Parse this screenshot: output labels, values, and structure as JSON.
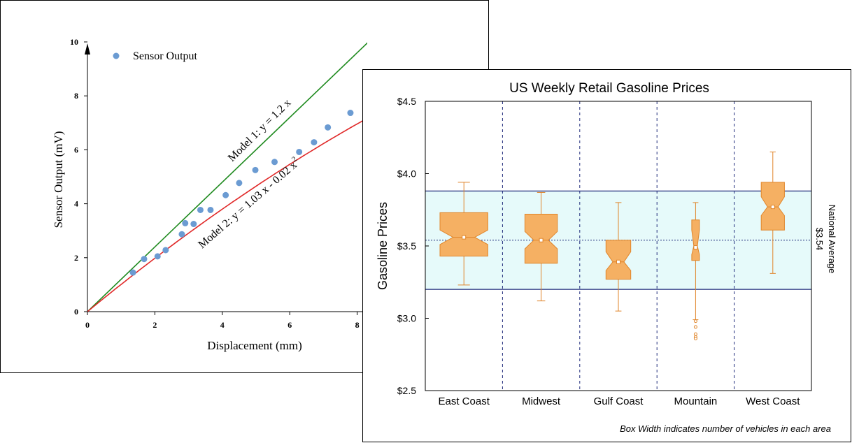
{
  "chart_data": [
    {
      "type": "scatter",
      "xlabel": "Displacement (mm)",
      "ylabel": "Sensor Output (mV)",
      "xlim": [
        0,
        8.3
      ],
      "ylim": [
        0,
        10
      ],
      "xticks": [
        "0",
        "2",
        "4",
        "6",
        "8"
      ],
      "yticks": [
        "0",
        "2",
        "4",
        "6",
        "8",
        "10"
      ],
      "legend": {
        "label": "Sensor Output",
        "position": "top-left"
      },
      "series": [
        {
          "name": "Sensor Output",
          "color": "#6b9bd2",
          "x": [
            1.35,
            1.68,
            2.08,
            2.32,
            2.8,
            2.9,
            3.15,
            3.35,
            3.65,
            4.1,
            4.5,
            4.98,
            5.55,
            6.28,
            6.72,
            7.13,
            7.8
          ],
          "y": [
            1.45,
            1.95,
            2.05,
            2.28,
            2.87,
            3.28,
            3.25,
            3.77,
            3.77,
            4.32,
            4.77,
            5.25,
            5.55,
            5.92,
            6.28,
            6.83,
            7.37
          ]
        }
      ],
      "models": [
        {
          "label": "Model 1: y = 1.2 x",
          "color": "#1e8a1e",
          "a": 1.2,
          "b": 0
        },
        {
          "label_main": "Model 2: y = 1.03 x - 0.02 x",
          "label_sup": "2",
          "color": "#e02828",
          "a": 1.03,
          "b": -0.02
        }
      ]
    },
    {
      "type": "box",
      "title": "US Weekly Retail Gasoline Prices",
      "ylabel": "Gasoline Prices",
      "ylim": [
        2.5,
        4.5
      ],
      "yticks": [
        "$2.5",
        "$3.0",
        "$3.5",
        "$4.0",
        "$4.5"
      ],
      "ytick_values": [
        2.5,
        3.0,
        3.5,
        4.0,
        4.5
      ],
      "categories": [
        "East Coast",
        "Midwest",
        "Gulf Coast",
        "Mountain",
        "West Coast"
      ],
      "box_color": "#f5b063",
      "box_stroke": "#e0852a",
      "boxes": [
        {
          "category": "East Coast",
          "whisker_low": 3.23,
          "q1": 3.43,
          "notch_low": 3.51,
          "median": 3.56,
          "notch_high": 3.61,
          "q3": 3.73,
          "whisker_high": 3.94,
          "mean": 3.56,
          "outliers": [],
          "width": 0.62
        },
        {
          "category": "Midwest",
          "whisker_low": 3.12,
          "q1": 3.38,
          "notch_low": 3.48,
          "median": 3.54,
          "notch_high": 3.6,
          "q3": 3.72,
          "whisker_high": 3.87,
          "mean": 3.54,
          "outliers": [],
          "width": 0.42
        },
        {
          "category": "Gulf Coast",
          "whisker_low": 3.05,
          "q1": 3.27,
          "notch_low": 3.33,
          "median": 3.39,
          "notch_high": 3.46,
          "q3": 3.54,
          "whisker_high": 3.8,
          "mean": 3.39,
          "outliers": [],
          "width": 0.32
        },
        {
          "category": "Mountain",
          "whisker_low": 2.99,
          "q1": 3.4,
          "notch_low": 3.44,
          "median": 3.5,
          "notch_high": 3.61,
          "q3": 3.68,
          "whisker_high": 3.8,
          "mean": 3.49,
          "outliers": [
            2.98,
            2.94,
            2.89,
            2.87,
            2.86
          ],
          "width": 0.1
        },
        {
          "category": "West Coast",
          "whisker_low": 3.31,
          "q1": 3.61,
          "notch_low": 3.71,
          "median": 3.77,
          "notch_high": 3.84,
          "q3": 3.94,
          "whisker_high": 4.15,
          "mean": 3.77,
          "outliers": [],
          "width": 0.3
        }
      ],
      "band": {
        "low": 3.2,
        "high": 3.88,
        "fill": "#e6fafa",
        "edge": "#1f2a7a"
      },
      "reference": {
        "value": 3.54,
        "label_line1": "National Average",
        "label_line2": "$3.54"
      },
      "footnote": "Box Width indicates number of vehicles in each area"
    }
  ]
}
